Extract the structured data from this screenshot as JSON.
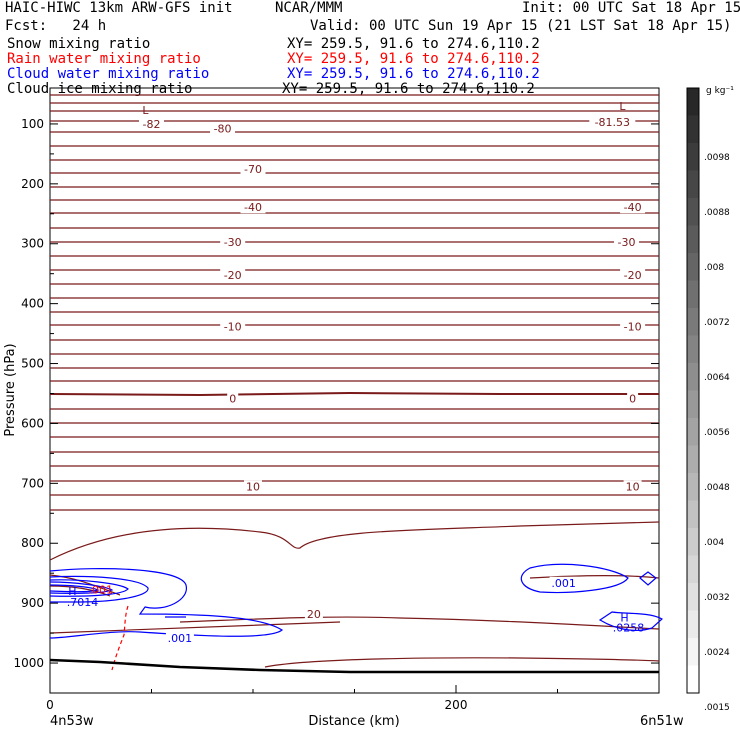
{
  "header": {
    "model": "HAIC-HIWC 13km ARW-GFS init",
    "org": "NCAR/MMM",
    "init": "Init: 00 UTC Sat 18 Apr 15",
    "fcst": "Fcst:   24 h",
    "valid": "Valid: 00 UTC Sun 19 Apr 15 (21 LST Sat 18 Apr 15)"
  },
  "fields": [
    {
      "name": "Snow mixing ratio",
      "xy": "XY= 259.5, 91.6 to 274.6,110.2",
      "color": "#000000"
    },
    {
      "name": "Rain water mixing ratio",
      "xy": "XY= 259.5, 91.6 to 274.6,110.2",
      "color": "#ff0000"
    },
    {
      "name": "Cloud water mixing ratio",
      "xy": "XY= 259.5, 91.6 to 274.6,110.2",
      "color": "#0000ff"
    },
    {
      "name": "Cloud ice mixing ratio",
      "xy": "XY= 259.5, 91.6 to 274.6,110.2",
      "color": "#000000"
    }
  ],
  "colors": {
    "temperature": "#7a1a1a",
    "cloud_water": "#0000ff",
    "rain": "#ff0000",
    "terrain": "#000000"
  },
  "chart_data": {
    "type": "cross-section",
    "xlabel": "Distance (km)",
    "ylabel": "Pressure (hPa)",
    "xlim": [
      0,
      300
    ],
    "ylim": [
      1050,
      40
    ],
    "x_ticks": [
      "0",
      "200"
    ],
    "x_tick_values": [
      0,
      200
    ],
    "y_ticks": [
      "100",
      "200",
      "300",
      "400",
      "500",
      "600",
      "700",
      "800",
      "900",
      "1000"
    ],
    "y_tick_values": [
      100,
      200,
      300,
      400,
      500,
      600,
      700,
      800,
      900,
      1000
    ],
    "left_endpoint": "4n53w",
    "right_endpoint": "6n51w",
    "temperature_labels": [
      {
        "text": "-82",
        "x": 50,
        "p": 100
      },
      {
        "text": "-80",
        "x": 85,
        "p": 108
      },
      {
        "text": "-70",
        "x": 100,
        "p": 175
      },
      {
        "text": "-40",
        "x": 100,
        "p": 239
      },
      {
        "text": "-30",
        "x": 90,
        "p": 297
      },
      {
        "text": "-20",
        "x": 90,
        "p": 352
      },
      {
        "text": "-10",
        "x": 90,
        "p": 438
      },
      {
        "text": "0",
        "x": 90,
        "p": 558
      },
      {
        "text": "10",
        "x": 100,
        "p": 705
      },
      {
        "text": "20",
        "x": 130,
        "p": 918
      },
      {
        "text": "-81.53",
        "x": 277,
        "p": 97
      },
      {
        "text": "-40",
        "x": 287,
        "p": 239
      },
      {
        "text": "-30",
        "x": 284,
        "p": 297
      },
      {
        "text": "-20",
        "x": 287,
        "p": 352
      },
      {
        "text": "-10",
        "x": 287,
        "p": 438
      },
      {
        "text": "0",
        "x": 287,
        "p": 558
      },
      {
        "text": "10",
        "x": 287,
        "p": 705
      }
    ],
    "extrema_labels": [
      {
        "text": "L",
        "x": 47,
        "p": 77,
        "color": "#7a1a1a"
      },
      {
        "text": "L",
        "x": 282,
        "p": 70,
        "color": "#7a1a1a"
      },
      {
        "text": "H",
        "x": 11,
        "p": 880,
        "color": "#0000ff"
      },
      {
        "text": ".7014",
        "x": 16,
        "p": 898,
        "color": "#0000ff"
      },
      {
        "text": "H",
        "x": 283,
        "p": 924,
        "color": "#0000ff"
      },
      {
        "text": ".0258",
        "x": 285,
        "p": 941,
        "color": "#0000ff"
      }
    ],
    "cloud_water_labels": [
      {
        "text": ".001",
        "x": 64,
        "p": 958
      },
      {
        "text": ".001",
        "x": 253,
        "p": 866
      }
    ],
    "rain_labels": [
      {
        "text": ".001",
        "x": 25,
        "p": 877
      }
    ],
    "colorbar": {
      "unit": "g kg⁻¹",
      "labels": [
        ".0098",
        ".0088",
        ".008",
        ".0072",
        ".0064",
        ".0056",
        ".0048",
        ".004",
        ".0032",
        ".0024",
        ".0015"
      ]
    }
  }
}
